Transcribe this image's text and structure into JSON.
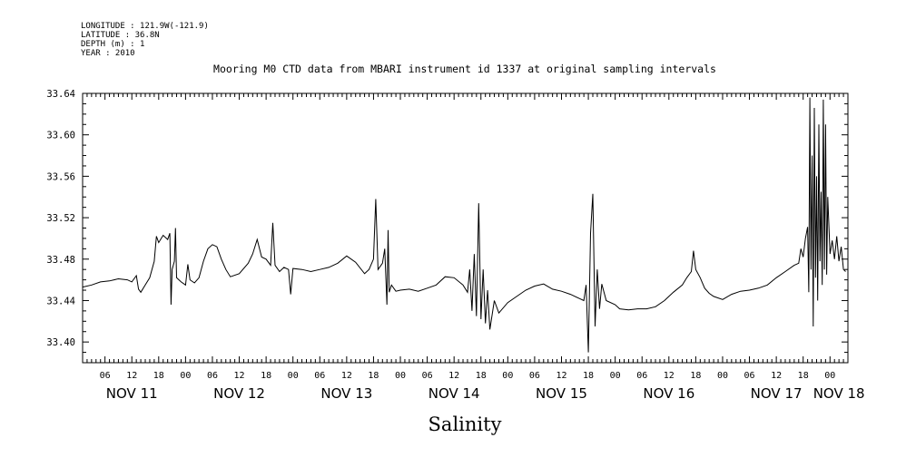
{
  "header": {
    "meta_lines": [
      "LONGITUDE : 121.9W(-121.9)",
      "LATITUDE : 36.8N",
      "DEPTH (m) : 1",
      "YEAR : 2010"
    ]
  },
  "chart_data": {
    "type": "line",
    "title": "Mooring M0 CTD data from MBARI instrument id 1337 at original sampling intervals",
    "xlabel": "Salinity",
    "ylabel": "",
    "ylim": [
      33.38,
      33.64
    ],
    "y_ticks": [
      "33.40",
      "33.44",
      "33.48",
      "33.52",
      "33.56",
      "33.60",
      "33.64"
    ],
    "y_tick_values": [
      33.4,
      33.44,
      33.48,
      33.52,
      33.56,
      33.6,
      33.64
    ],
    "x_range": [
      "2010-11-11T01:00",
      "2010-11-18T04:00"
    ],
    "x_hour_labels": [
      {
        "t": "2010-11-11T06:00",
        "label": "06"
      },
      {
        "t": "2010-11-11T12:00",
        "label": "12"
      },
      {
        "t": "2010-11-11T18:00",
        "label": "18"
      },
      {
        "t": "2010-11-12T00:00",
        "label": "00"
      },
      {
        "t": "2010-11-12T06:00",
        "label": "06"
      },
      {
        "t": "2010-11-12T12:00",
        "label": "12"
      },
      {
        "t": "2010-11-12T18:00",
        "label": "18"
      },
      {
        "t": "2010-11-13T00:00",
        "label": "00"
      },
      {
        "t": "2010-11-13T06:00",
        "label": "06"
      },
      {
        "t": "2010-11-13T12:00",
        "label": "12"
      },
      {
        "t": "2010-11-13T18:00",
        "label": "18"
      },
      {
        "t": "2010-11-14T00:00",
        "label": "00"
      },
      {
        "t": "2010-11-14T06:00",
        "label": "06"
      },
      {
        "t": "2010-11-14T12:00",
        "label": "12"
      },
      {
        "t": "2010-11-14T18:00",
        "label": "18"
      },
      {
        "t": "2010-11-15T00:00",
        "label": "00"
      },
      {
        "t": "2010-11-15T06:00",
        "label": "06"
      },
      {
        "t": "2010-11-15T12:00",
        "label": "12"
      },
      {
        "t": "2010-11-15T18:00",
        "label": "18"
      },
      {
        "t": "2010-11-16T00:00",
        "label": "00"
      },
      {
        "t": "2010-11-16T06:00",
        "label": "06"
      },
      {
        "t": "2010-11-16T12:00",
        "label": "12"
      },
      {
        "t": "2010-11-16T18:00",
        "label": "18"
      },
      {
        "t": "2010-11-17T00:00",
        "label": "00"
      },
      {
        "t": "2010-11-17T06:00",
        "label": "06"
      },
      {
        "t": "2010-11-17T12:00",
        "label": "12"
      },
      {
        "t": "2010-11-17T18:00",
        "label": "18"
      },
      {
        "t": "2010-11-18T00:00",
        "label": "00"
      }
    ],
    "x_day_labels": [
      {
        "t": "2010-11-11T12:00",
        "label": "NOV 11"
      },
      {
        "t": "2010-11-12T12:00",
        "label": "NOV 12"
      },
      {
        "t": "2010-11-13T12:00",
        "label": "NOV 13"
      },
      {
        "t": "2010-11-14T12:00",
        "label": "NOV 14"
      },
      {
        "t": "2010-11-15T12:00",
        "label": "NOV 15"
      },
      {
        "t": "2010-11-16T12:00",
        "label": "NOV 16"
      },
      {
        "t": "2010-11-17T12:00",
        "label": "NOV 17"
      },
      {
        "t": "2010-11-18T02:00",
        "label": "NOV 18"
      }
    ],
    "grid": false,
    "series": [
      {
        "color": "#000000",
        "points": [
          [
            "2010-11-11T01:00",
            33.453
          ],
          [
            "2010-11-11T03:00",
            33.455
          ],
          [
            "2010-11-11T05:00",
            33.458
          ],
          [
            "2010-11-11T07:00",
            33.459
          ],
          [
            "2010-11-11T09:00",
            33.461
          ],
          [
            "2010-11-11T11:00",
            33.46
          ],
          [
            "2010-11-11T12:00",
            33.458
          ],
          [
            "2010-11-11T13:00",
            33.464
          ],
          [
            "2010-11-11T13:30",
            33.451
          ],
          [
            "2010-11-11T14:00",
            33.448
          ],
          [
            "2010-11-11T15:00",
            33.455
          ],
          [
            "2010-11-11T16:00",
            33.462
          ],
          [
            "2010-11-11T17:00",
            33.478
          ],
          [
            "2010-11-11T17:30",
            33.502
          ],
          [
            "2010-11-11T18:00",
            33.496
          ],
          [
            "2010-11-11T19:00",
            33.503
          ],
          [
            "2010-11-11T20:00",
            33.499
          ],
          [
            "2010-11-11T20:30",
            33.505
          ],
          [
            "2010-11-11T20:45",
            33.436
          ],
          [
            "2010-11-11T21:00",
            33.47
          ],
          [
            "2010-11-11T21:30",
            33.478
          ],
          [
            "2010-11-11T21:45",
            33.51
          ],
          [
            "2010-11-11T22:00",
            33.462
          ],
          [
            "2010-11-11T23:00",
            33.458
          ],
          [
            "2010-11-12T00:00",
            33.455
          ],
          [
            "2010-11-12T00:30",
            33.475
          ],
          [
            "2010-11-12T01:00",
            33.46
          ],
          [
            "2010-11-12T02:00",
            33.457
          ],
          [
            "2010-11-12T03:00",
            33.462
          ],
          [
            "2010-11-12T04:00",
            33.478
          ],
          [
            "2010-11-12T05:00",
            33.49
          ],
          [
            "2010-11-12T06:00",
            33.494
          ],
          [
            "2010-11-12T07:00",
            33.492
          ],
          [
            "2010-11-12T08:00",
            33.48
          ],
          [
            "2010-11-12T09:00",
            33.47
          ],
          [
            "2010-11-12T10:00",
            33.463
          ],
          [
            "2010-11-12T12:00",
            33.466
          ],
          [
            "2010-11-12T14:00",
            33.476
          ],
          [
            "2010-11-12T15:00",
            33.485
          ],
          [
            "2010-11-12T16:00",
            33.499
          ],
          [
            "2010-11-12T17:00",
            33.482
          ],
          [
            "2010-11-12T18:00",
            33.48
          ],
          [
            "2010-11-12T19:00",
            33.474
          ],
          [
            "2010-11-12T19:30",
            33.515
          ],
          [
            "2010-11-12T20:00",
            33.474
          ],
          [
            "2010-11-12T21:00",
            33.468
          ],
          [
            "2010-11-12T22:00",
            33.472
          ],
          [
            "2010-11-12T23:00",
            33.47
          ],
          [
            "2010-11-12T23:30",
            33.446
          ],
          [
            "2010-11-13T00:00",
            33.471
          ],
          [
            "2010-11-13T02:00",
            33.47
          ],
          [
            "2010-11-13T04:00",
            33.468
          ],
          [
            "2010-11-13T06:00",
            33.47
          ],
          [
            "2010-11-13T08:00",
            33.472
          ],
          [
            "2010-11-13T10:00",
            33.476
          ],
          [
            "2010-11-13T12:00",
            33.483
          ],
          [
            "2010-11-13T14:00",
            33.477
          ],
          [
            "2010-11-13T16:00",
            33.466
          ],
          [
            "2010-11-13T17:00",
            33.47
          ],
          [
            "2010-11-13T18:00",
            33.48
          ],
          [
            "2010-11-13T18:30",
            33.538
          ],
          [
            "2010-11-13T19:00",
            33.47
          ],
          [
            "2010-11-13T20:00",
            33.476
          ],
          [
            "2010-11-13T20:30",
            33.49
          ],
          [
            "2010-11-13T21:00",
            33.436
          ],
          [
            "2010-11-13T21:15",
            33.508
          ],
          [
            "2010-11-13T21:30",
            33.448
          ],
          [
            "2010-11-13T22:00",
            33.455
          ],
          [
            "2010-11-13T23:00",
            33.449
          ],
          [
            "2010-11-14T00:00",
            33.45
          ],
          [
            "2010-11-14T02:00",
            33.451
          ],
          [
            "2010-11-14T04:00",
            33.449
          ],
          [
            "2010-11-14T06:00",
            33.452
          ],
          [
            "2010-11-14T08:00",
            33.455
          ],
          [
            "2010-11-14T10:00",
            33.463
          ],
          [
            "2010-11-14T12:00",
            33.462
          ],
          [
            "2010-11-14T14:00",
            33.455
          ],
          [
            "2010-11-14T15:00",
            33.448
          ],
          [
            "2010-11-14T15:30",
            33.47
          ],
          [
            "2010-11-14T16:00",
            33.43
          ],
          [
            "2010-11-14T16:30",
            33.485
          ],
          [
            "2010-11-14T17:00",
            33.425
          ],
          [
            "2010-11-14T17:30",
            33.534
          ],
          [
            "2010-11-14T18:00",
            33.422
          ],
          [
            "2010-11-14T18:30",
            33.47
          ],
          [
            "2010-11-14T19:00",
            33.418
          ],
          [
            "2010-11-14T19:30",
            33.45
          ],
          [
            "2010-11-14T20:00",
            33.412
          ],
          [
            "2010-11-14T21:00",
            33.44
          ],
          [
            "2010-11-14T22:00",
            33.428
          ],
          [
            "2010-11-15T00:00",
            33.438
          ],
          [
            "2010-11-15T02:00",
            33.444
          ],
          [
            "2010-11-15T04:00",
            33.45
          ],
          [
            "2010-11-15T06:00",
            33.454
          ],
          [
            "2010-11-15T08:00",
            33.456
          ],
          [
            "2010-11-15T10:00",
            33.451
          ],
          [
            "2010-11-15T12:00",
            33.449
          ],
          [
            "2010-11-15T14:00",
            33.446
          ],
          [
            "2010-11-15T16:00",
            33.442
          ],
          [
            "2010-11-15T17:00",
            33.44
          ],
          [
            "2010-11-15T17:30",
            33.455
          ],
          [
            "2010-11-15T18:00",
            33.39
          ],
          [
            "2010-11-15T18:30",
            33.505
          ],
          [
            "2010-11-15T19:00",
            33.543
          ],
          [
            "2010-11-15T19:30",
            33.415
          ],
          [
            "2010-11-15T20:00",
            33.47
          ],
          [
            "2010-11-15T20:30",
            33.432
          ],
          [
            "2010-11-15T21:00",
            33.456
          ],
          [
            "2010-11-15T22:00",
            33.44
          ],
          [
            "2010-11-16T00:00",
            33.436
          ],
          [
            "2010-11-16T01:00",
            33.432
          ],
          [
            "2010-11-16T03:00",
            33.431
          ],
          [
            "2010-11-16T05:00",
            33.432
          ],
          [
            "2010-11-16T07:00",
            33.432
          ],
          [
            "2010-11-16T09:00",
            33.434
          ],
          [
            "2010-11-16T11:00",
            33.44
          ],
          [
            "2010-11-16T13:00",
            33.448
          ],
          [
            "2010-11-16T15:00",
            33.455
          ],
          [
            "2010-11-16T16:00",
            33.462
          ],
          [
            "2010-11-16T17:00",
            33.468
          ],
          [
            "2010-11-16T17:30",
            33.488
          ],
          [
            "2010-11-16T18:00",
            33.47
          ],
          [
            "2010-11-16T19:00",
            33.462
          ],
          [
            "2010-11-16T20:00",
            33.452
          ],
          [
            "2010-11-16T21:00",
            33.447
          ],
          [
            "2010-11-16T22:00",
            33.444
          ],
          [
            "2010-11-17T00:00",
            33.441
          ],
          [
            "2010-11-17T02:00",
            33.446
          ],
          [
            "2010-11-17T04:00",
            33.449
          ],
          [
            "2010-11-17T06:00",
            33.45
          ],
          [
            "2010-11-17T08:00",
            33.452
          ],
          [
            "2010-11-17T10:00",
            33.455
          ],
          [
            "2010-11-17T12:00",
            33.462
          ],
          [
            "2010-11-17T14:00",
            33.468
          ],
          [
            "2010-11-17T16:00",
            33.474
          ],
          [
            "2010-11-17T17:00",
            33.476
          ],
          [
            "2010-11-17T17:30",
            33.49
          ],
          [
            "2010-11-17T18:00",
            33.482
          ],
          [
            "2010-11-17T18:30",
            33.5
          ],
          [
            "2010-11-17T19:00",
            33.511
          ],
          [
            "2010-11-17T19:15",
            33.448
          ],
          [
            "2010-11-17T19:30",
            33.636
          ],
          [
            "2010-11-17T19:45",
            33.47
          ],
          [
            "2010-11-17T20:00",
            33.58
          ],
          [
            "2010-11-17T20:15",
            33.415
          ],
          [
            "2010-11-17T20:30",
            33.626
          ],
          [
            "2010-11-17T20:45",
            33.462
          ],
          [
            "2010-11-17T21:00",
            33.56
          ],
          [
            "2010-11-17T21:15",
            33.44
          ],
          [
            "2010-11-17T21:30",
            33.61
          ],
          [
            "2010-11-17T21:45",
            33.478
          ],
          [
            "2010-11-17T22:00",
            33.545
          ],
          [
            "2010-11-17T22:15",
            33.455
          ],
          [
            "2010-11-17T22:30",
            33.634
          ],
          [
            "2010-11-17T22:45",
            33.47
          ],
          [
            "2010-11-17T23:00",
            33.61
          ],
          [
            "2010-11-17T23:15",
            33.465
          ],
          [
            "2010-11-17T23:30",
            33.54
          ],
          [
            "2010-11-18T00:00",
            33.485
          ],
          [
            "2010-11-18T00:30",
            33.498
          ],
          [
            "2010-11-18T01:00",
            33.48
          ],
          [
            "2010-11-18T01:30",
            33.502
          ],
          [
            "2010-11-18T02:00",
            33.478
          ],
          [
            "2010-11-18T02:30",
            33.492
          ],
          [
            "2010-11-18T03:00",
            33.47
          ],
          [
            "2010-11-18T03:30",
            33.468
          ]
        ]
      }
    ]
  }
}
